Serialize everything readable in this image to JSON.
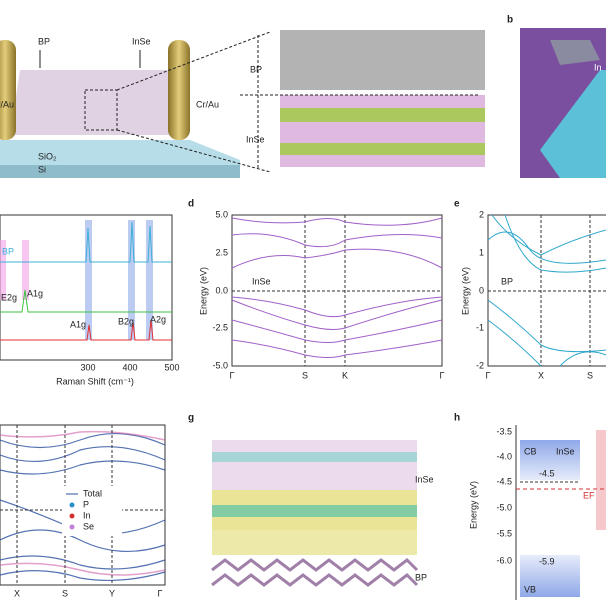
{
  "panel_a": {
    "labels": [
      "BP",
      "InSe",
      "Cr/Au",
      "Cr/Au",
      "SiO₂",
      "Si"
    ],
    "stack_labels": [
      "BP",
      "InSe"
    ]
  },
  "panel_b": {
    "letter": "b",
    "label": "In"
  },
  "panel_c": {
    "series_label": "BP",
    "peaks": [
      "E2g",
      "A1g",
      "A1g",
      "B2g",
      "A2g"
    ],
    "xticks": [
      "300",
      "400",
      "500"
    ],
    "xlabel": "Raman Shift (cm⁻¹)"
  },
  "panel_d": {
    "letter": "d",
    "yticks": [
      "5.0",
      "2.5",
      "0.0",
      "-2.5",
      "-5.0"
    ],
    "ylabel": "Energy (eV)",
    "label": "InSe",
    "xlabels": [
      "Γ",
      "S",
      "K",
      "Γ"
    ]
  },
  "panel_e": {
    "letter": "e",
    "yticks": [
      "2",
      "1",
      "0",
      "-1",
      "-2"
    ],
    "ylabel": "Energy (eV)",
    "label": "BP",
    "xlabels": [
      "Γ",
      "X",
      "S"
    ]
  },
  "panel_f": {
    "legend": [
      "Total",
      "P",
      "In",
      "Se"
    ],
    "xlabels": [
      "X",
      "S",
      "Y",
      "Γ"
    ]
  },
  "panel_g": {
    "letter": "g",
    "labels": [
      "InSe",
      "BP"
    ]
  },
  "panel_h": {
    "letter": "h",
    "yticks": [
      "-3.5",
      "-4.0",
      "-4.5",
      "-5.0",
      "-5.5",
      "-6.0"
    ],
    "ylabel": "Energy (eV)",
    "labels": [
      "CB",
      "InSe",
      "-4.5",
      "EF",
      "-5.9",
      "VB"
    ]
  }
}
